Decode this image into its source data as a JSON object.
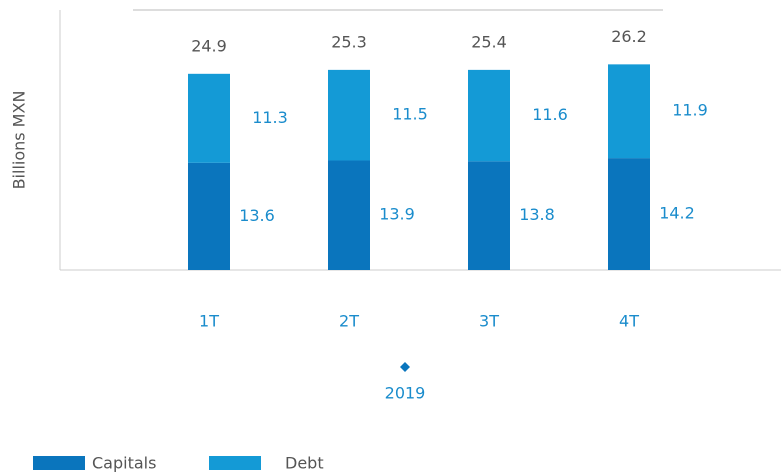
{
  "chart_data": {
    "type": "stacked-bar",
    "y_label": "Billions MXN",
    "categories": [
      "1T",
      "2T",
      "3T",
      "4T"
    ],
    "group_label": "2019",
    "series": [
      {
        "name": "Capitals",
        "color": "#0a75bd",
        "values": [
          13.6,
          13.9,
          13.8,
          14.2
        ]
      },
      {
        "name": "Debt",
        "color": "#149ad6",
        "values": [
          11.3,
          11.5,
          11.6,
          11.9
        ]
      }
    ],
    "totals": [
      24.9,
      25.3,
      25.4,
      26.2
    ],
    "ylim": [
      0,
      33
    ]
  }
}
